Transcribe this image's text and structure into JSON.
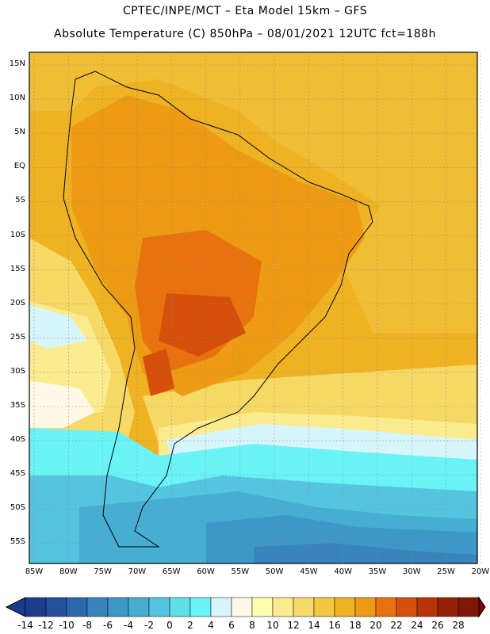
{
  "title_line1": "CPTEC/INPE/MCT –  Eta Model 15km – GFS",
  "title_line2": "Absolute Temperature (C) 850hPa – 08/01/2021 12UTC fct=188h",
  "lat_labels": [
    "15N",
    "10N",
    "5N",
    "EQ",
    "5S",
    "10S",
    "15S",
    "20S",
    "25S",
    "30S",
    "35S",
    "40S",
    "45S",
    "50S",
    "55S"
  ],
  "lon_labels": [
    "85W",
    "80W",
    "75W",
    "70W",
    "65W",
    "60W",
    "55W",
    "50W",
    "45W",
    "40W",
    "35W",
    "30W",
    "25W",
    "20W"
  ],
  "colorbar": {
    "labels": [
      "-14",
      "-12",
      "-10",
      "-8",
      "-6",
      "-4",
      "-2",
      "0",
      "2",
      "4",
      "6",
      "8",
      "10",
      "12",
      "14",
      "16",
      "18",
      "20",
      "22",
      "24",
      "26",
      "28"
    ],
    "colors": [
      "#1e3c8c",
      "#234f9b",
      "#2a68ad",
      "#3a84bd",
      "#3e98c7",
      "#46aed2",
      "#55c5df",
      "#5edfe9",
      "#69f3f7",
      "#d6f6fb",
      "#fff8e6",
      "#fefeb0",
      "#fbeb8f",
      "#f6d865",
      "#f2c741",
      "#eeb222",
      "#ed9b14",
      "#e8730e",
      "#d6500c",
      "#b93208",
      "#982007",
      "#7f1606"
    ],
    "under_color": "#1e3a8a",
    "over_color": "#80000f"
  }
}
